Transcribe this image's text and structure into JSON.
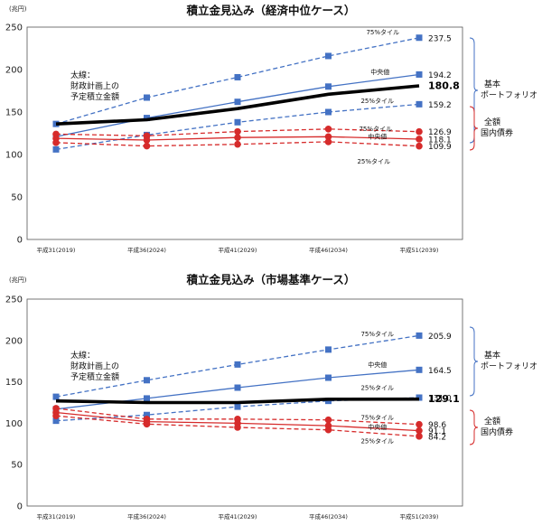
{
  "chart_data": [
    {
      "type": "line",
      "title": "積立金見込み（経済中位ケース）",
      "unit_label": "(兆円)",
      "categories": [
        "平成31(2019)",
        "平成36(2024)",
        "平成41(2029)",
        "平成46(2034)",
        "平成51(2039)"
      ],
      "ylim": [
        0,
        250
      ],
      "yticks": [
        "0",
        "50",
        "100",
        "150",
        "200",
        "250"
      ],
      "series": [
        {
          "group": "pf",
          "style": "dashed",
          "name": "75%タイル",
          "values": [
            136,
            167,
            191,
            216,
            237.5
          ],
          "end_label": "237.5"
        },
        {
          "group": "pf",
          "style": "solid",
          "name": "中央値",
          "values": [
            121,
            143,
            162,
            180,
            194.2
          ],
          "end_label": "194.2"
        },
        {
          "group": "pf",
          "style": "dashed",
          "name": "25%タイル",
          "values": [
            106,
            123,
            138,
            150,
            159.2
          ],
          "end_label": "159.2"
        },
        {
          "group": "bond",
          "style": "dashed",
          "name": "75%タイル",
          "values": [
            124,
            122,
            127,
            130,
            126.9
          ],
          "end_label": "126.9"
        },
        {
          "group": "bond",
          "style": "solid",
          "name": "中央値",
          "values": [
            119,
            117,
            120,
            121,
            118.1
          ],
          "end_label": "118.1"
        },
        {
          "group": "bond",
          "style": "dashed",
          "name": "25%タイル",
          "values": [
            114,
            110,
            112,
            115,
            109.9
          ],
          "end_label": "109.9"
        },
        {
          "group": "plan",
          "style": "bold",
          "name": "",
          "values": [
            136,
            141,
            154,
            171,
            180.8
          ],
          "end_label": "180.8"
        }
      ],
      "note_lines": [
        "太線：",
        "財政計画上の",
        "予定積立金額"
      ],
      "portfolio_label": [
        "基本",
        "ポートフォリオ"
      ],
      "bond_label": [
        "全額",
        "国内債券"
      ]
    },
    {
      "type": "line",
      "title": "積立金見込み（市場基準ケース）",
      "unit_label": "(兆円)",
      "categories": [
        "平成31(2019)",
        "平成36(2024)",
        "平成41(2029)",
        "平成46(2034)",
        "平成51(2039)"
      ],
      "ylim": [
        0,
        250
      ],
      "yticks": [
        "0",
        "50",
        "100",
        "150",
        "200",
        "250"
      ],
      "series": [
        {
          "group": "pf",
          "style": "dashed",
          "name": "75%タイル",
          "values": [
            132,
            152,
            171,
            189,
            205.9
          ],
          "end_label": "205.9"
        },
        {
          "group": "pf",
          "style": "solid",
          "name": "中央値",
          "values": [
            117,
            130,
            143,
            155,
            164.5
          ],
          "end_label": "164.5"
        },
        {
          "group": "pf",
          "style": "dashed",
          "name": "25%タイル",
          "values": [
            103,
            110,
            120,
            127,
            131.0
          ],
          "end_label": "131.0"
        },
        {
          "group": "bond",
          "style": "dashed",
          "name": "75%タイル",
          "values": [
            118,
            105,
            105,
            104,
            98.6
          ],
          "end_label": "98.6"
        },
        {
          "group": "bond",
          "style": "solid",
          "name": "中央値",
          "values": [
            113,
            102,
            100,
            97,
            91.1
          ],
          "end_label": "91.1"
        },
        {
          "group": "bond",
          "style": "dashed",
          "name": "25%タイル",
          "values": [
            109,
            99,
            95,
            92,
            84.2
          ],
          "end_label": "84.2"
        },
        {
          "group": "plan",
          "style": "bold",
          "name": "",
          "values": [
            127,
            125,
            125,
            129,
            129.1
          ],
          "end_label": "129.1"
        }
      ],
      "note_lines": [
        "太線：",
        "財政計画上の",
        "予定積立金額"
      ],
      "portfolio_label": [
        "基本",
        "ポートフォリオ"
      ],
      "bond_label": [
        "全額",
        "国内債券"
      ]
    }
  ],
  "colors": {
    "portfolio": "#4472c4",
    "bond": "#d62b2b",
    "plan": "#000000"
  }
}
